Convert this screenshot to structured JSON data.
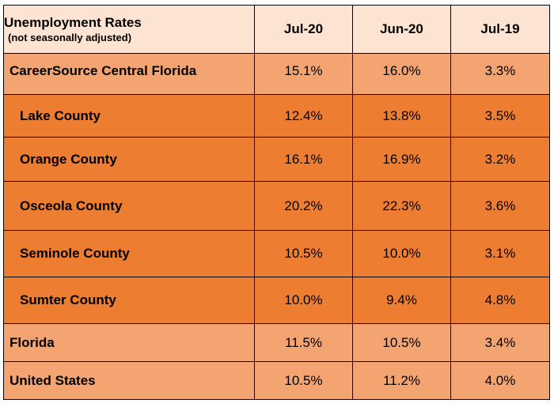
{
  "header": {
    "title": "Unemployment Rates",
    "subtitle": "(not seasonally adjusted)",
    "columns": [
      "Jul-20",
      "Jun-20",
      "Jul-19"
    ]
  },
  "rows": [
    {
      "label": "CareerSource Central Florida",
      "values": [
        "15.1%",
        "16.0%",
        "3.3%"
      ]
    },
    {
      "label": "Lake County",
      "values": [
        "12.4%",
        "13.8%",
        "3.5%"
      ]
    },
    {
      "label": "Orange County",
      "values": [
        "16.1%",
        "16.9%",
        "3.2%"
      ]
    },
    {
      "label": "Osceola County",
      "values": [
        "20.2%",
        "22.3%",
        "3.6%"
      ]
    },
    {
      "label": "Seminole County",
      "values": [
        "10.5%",
        "10.0%",
        "3.1%"
      ]
    },
    {
      "label": "Sumter County",
      "values": [
        "10.0%",
        "9.4%",
        "4.8%"
      ]
    },
    {
      "label": "Florida",
      "values": [
        "11.5%",
        "10.5%",
        "3.4%"
      ]
    },
    {
      "label": "United States",
      "values": [
        "10.5%",
        "11.2%",
        "4.0%"
      ]
    }
  ],
  "colors": {
    "header_bg": "#fde4d2",
    "region_bg": "#f4a470",
    "county_bg": "#ed7d31",
    "border": "#000000"
  }
}
